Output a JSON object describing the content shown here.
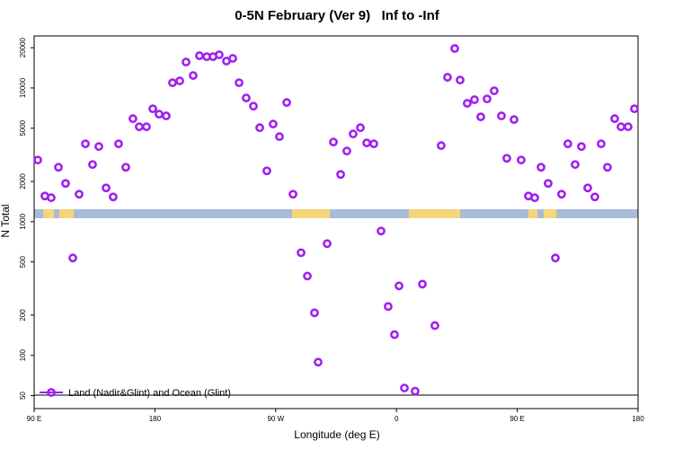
{
  "chart_data": {
    "type": "scatter",
    "title": "0-5N February (Ver 9)   Inf to -Inf",
    "x_label": "Longitude (deg E)",
    "y_label": "N Total",
    "log_y": true,
    "xlim": [
      90,
      540
    ],
    "ylim": [
      40,
      24500
    ],
    "xticks": [
      {
        "value": 90,
        "label": "90 E"
      },
      180,
      {
        "value": 270,
        "label": "90 W"
      },
      {
        "value": 360,
        "label": "0"
      },
      {
        "value": 450,
        "label": "90 E"
      },
      {
        "value": 540,
        "label": "180"
      }
    ],
    "yticks": [
      50,
      100,
      200,
      500,
      1000,
      2000,
      5000,
      10000,
      20000
    ],
    "legend": "bottom-left",
    "series": [
      {
        "name": "Land (Nadir&Glint) and Ocean (Glint)",
        "color": "#a020f0",
        "x": [
          92.7,
          98.0,
          102.7,
          108.1,
          113.4,
          118.8,
          123.5,
          128.2,
          133.5,
          138.2,
          143.6,
          148.9,
          152.9,
          158.3,
          163.6,
          168.3,
          173.7,
          178.4,
          183.1,
          188.4,
          193.1,
          198.5,
          203.2,
          208.5,
          213.2,
          218.6,
          223.3,
          227.9,
          233.3,
          238.0,
          242.7,
          248.0,
          253.4,
          258.1,
          263.4,
          268.1,
          272.8,
          278.2,
          282.9,
          288.9,
          293.6,
          298.9,
          301.6,
          308.3,
          313.0,
          318.4,
          323.0,
          327.7,
          333.1,
          337.8,
          343.1,
          348.5,
          353.8,
          358.5,
          361.9,
          365.9,
          373.9,
          379.3,
          388.6,
          393.3,
          398.0,
          403.4,
          407.4,
          412.7,
          418.1,
          422.8,
          427.5,
          432.8,
          438.2,
          442.2,
          447.6,
          452.9,
          458.3,
          463.0,
          467.7,
          473.0,
          478.4,
          483.0,
          487.7,
          493.1,
          497.8,
          502.5,
          507.8,
          512.5,
          517.2,
          522.6,
          527.3,
          532.6,
          537.3
        ],
        "values": [
          2890,
          1556,
          1510,
          2553,
          1932,
          535,
          1605,
          3820,
          2675,
          3645,
          1788,
          1532,
          3820,
          2553,
          5890,
          5125,
          5125,
          6985,
          6370,
          6180,
          10940,
          11295,
          15630,
          12390,
          17420,
          17140,
          17140,
          17700,
          15885,
          16635,
          10940,
          8415,
          7310,
          5045,
          2400,
          5370,
          4325,
          7780,
          1605,
          586,
          392,
          208,
          89,
          685,
          3940,
          2255,
          3375,
          4530,
          5045,
          3880,
          3820,
          851,
          232,
          143,
          331,
          57,
          54,
          341,
          167,
          3705,
          12020,
          19725,
          11455,
          7675,
          8165,
          6080,
          8280,
          9525,
          6180,
          2980,
          5805,
          2890,
          1556,
          1510,
          2553,
          1932,
          535,
          1605,
          3820,
          2675,
          3645,
          1788,
          1532,
          3820,
          2553,
          5890,
          5125,
          5125,
          6985
        ]
      }
    ]
  }
}
